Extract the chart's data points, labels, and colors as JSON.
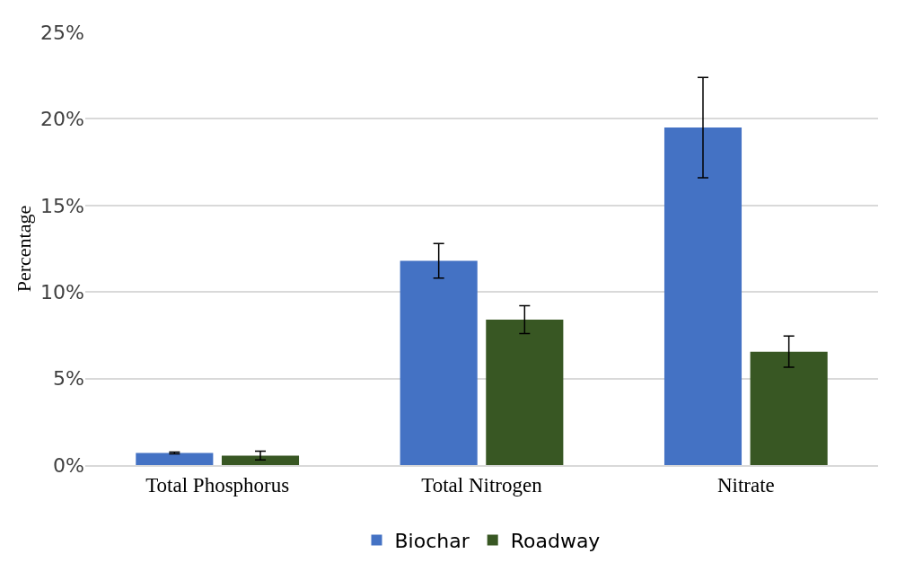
{
  "chart_data": {
    "type": "bar",
    "ylabel": "Percentage",
    "categories": [
      "Total Phosphorus",
      "Total Nitrogen",
      "Nitrate"
    ],
    "series": [
      {
        "name": "Biochar",
        "color": "#4472c4",
        "values": [
          0.7,
          11.8,
          19.5
        ],
        "errors": [
          0.05,
          1.0,
          2.9
        ]
      },
      {
        "name": "Roadway",
        "color": "#385723",
        "values": [
          0.55,
          8.4,
          6.55
        ],
        "errors": [
          0.25,
          0.8,
          0.9
        ]
      }
    ],
    "ylim": [
      0,
      25
    ],
    "yticks": [
      {
        "value": 0,
        "label": "0%"
      },
      {
        "value": 5,
        "label": "5%"
      },
      {
        "value": 10,
        "label": "10%"
      },
      {
        "value": 15,
        "label": "15%"
      },
      {
        "value": 20,
        "label": "20%"
      },
      {
        "value": 25,
        "label": "25%"
      }
    ],
    "grid": "y",
    "legend": "bottom"
  }
}
